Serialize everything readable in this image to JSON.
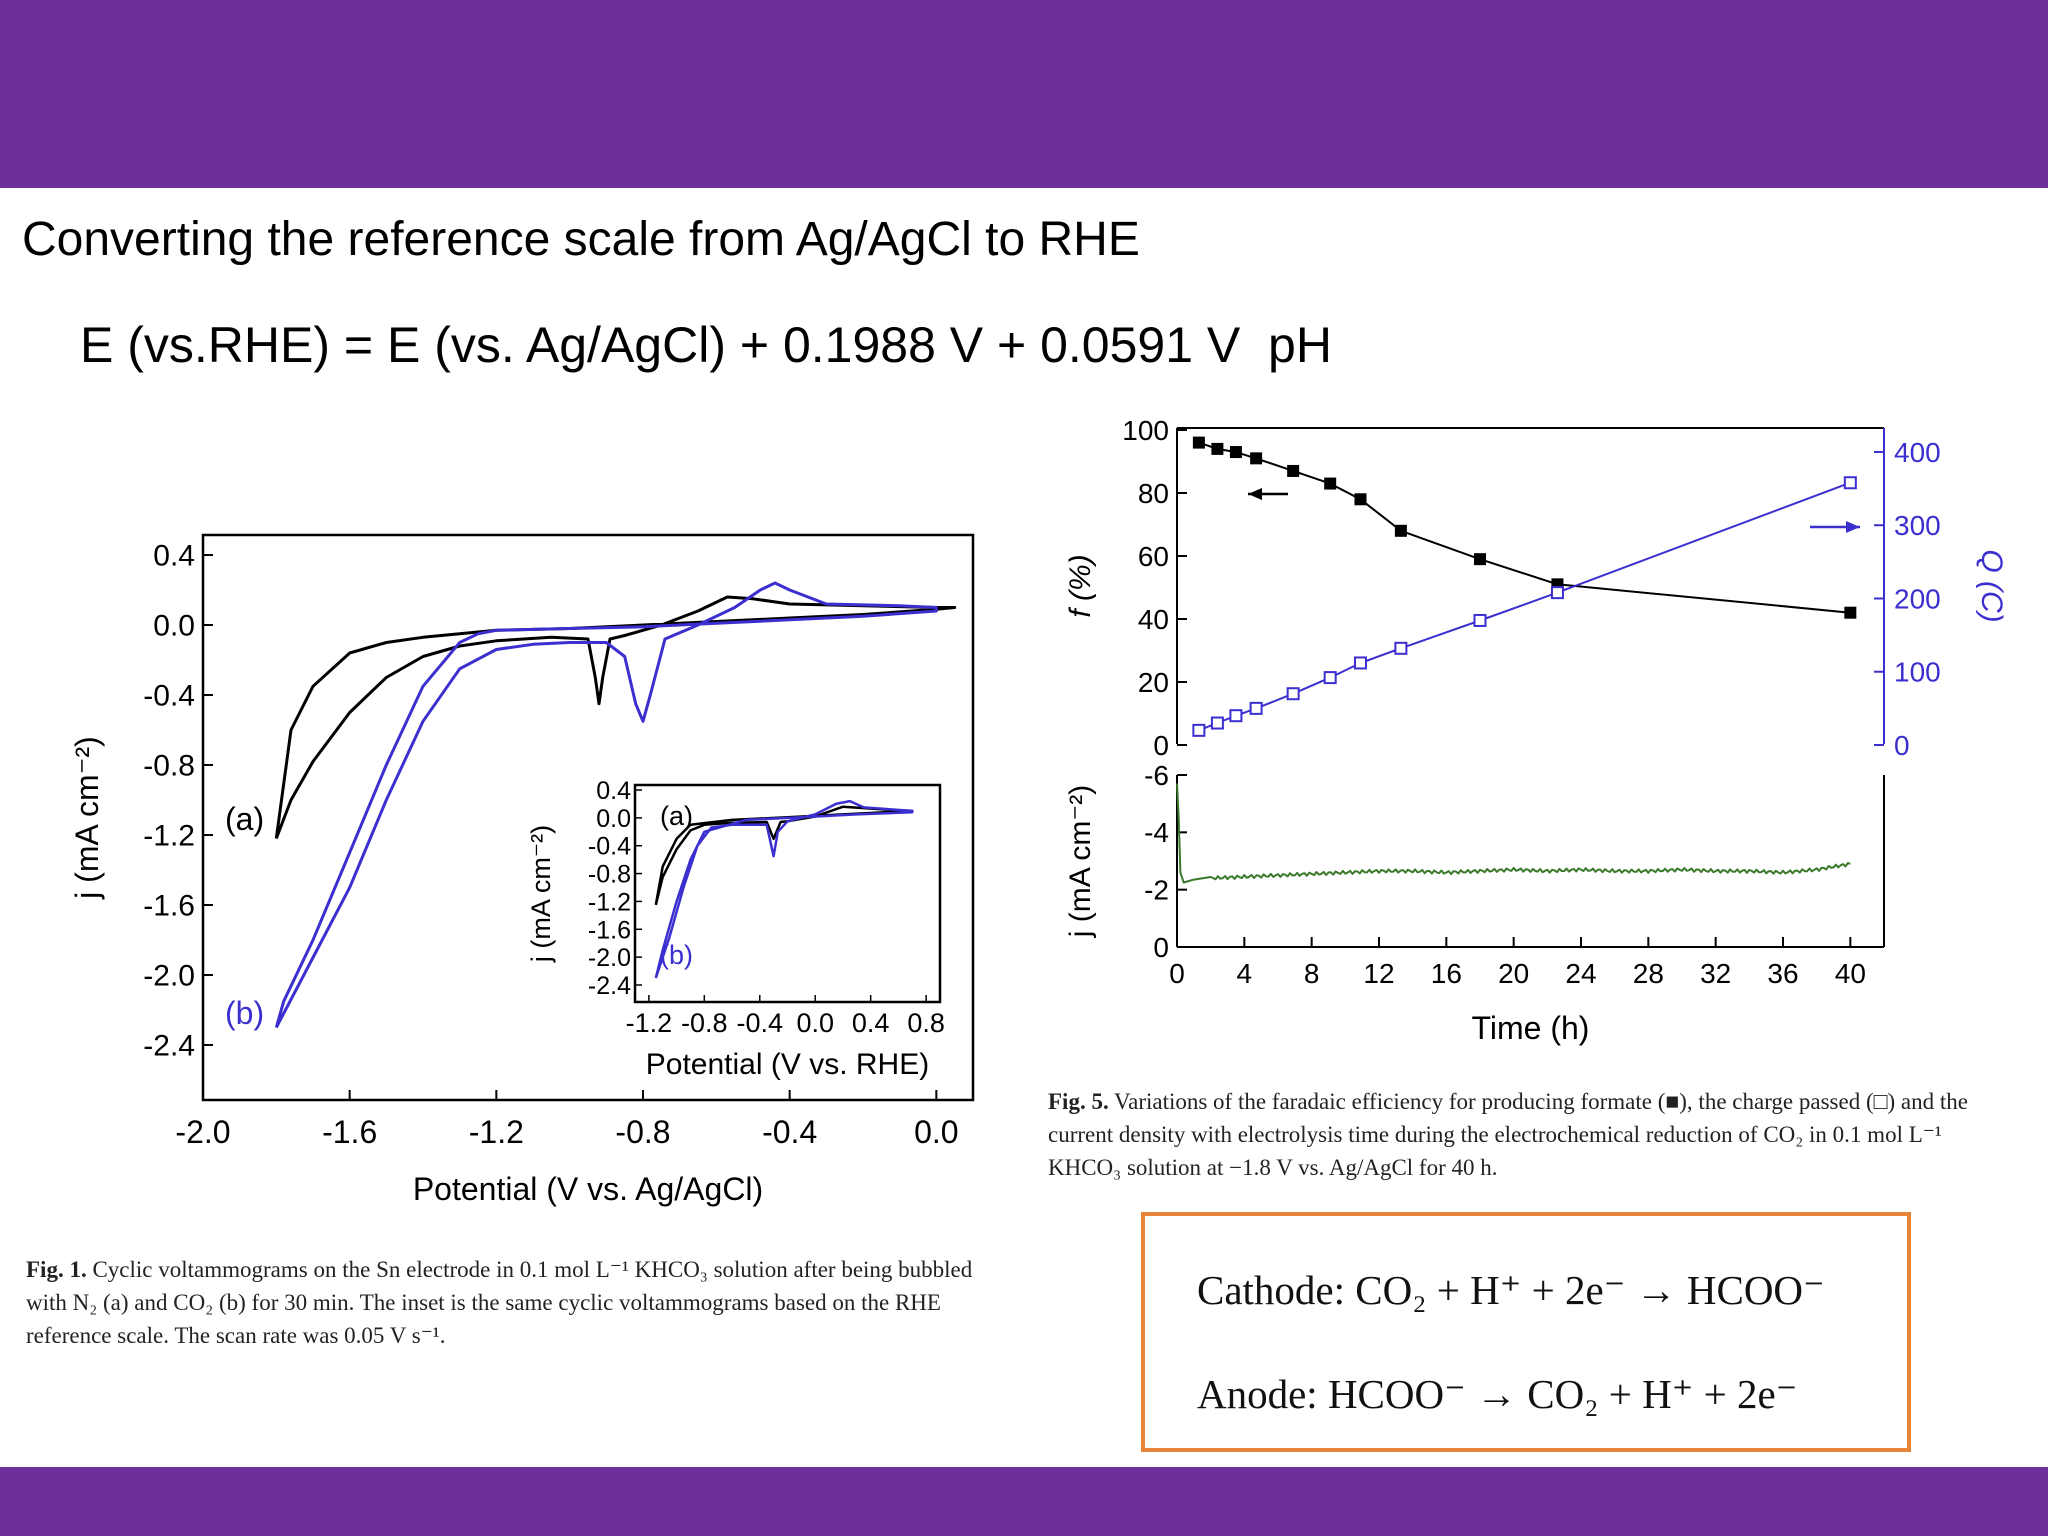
{
  "slide": {
    "title": "Converting the reference scale from Ag/AgCl to RHE",
    "equation": "E (vs.RHE) = E (vs. Ag/AgCl) + 0.1988 V + 0.0591 V  pH"
  },
  "colors": {
    "band": "#6f2f9b",
    "series_a": "#000000",
    "series_b": "#3b2fd0",
    "current": "#3a7a2a",
    "box_border": "#e8843a"
  },
  "fig1": {
    "caption": {
      "label": "Fig. 1.",
      "text": "Cyclic voltammograms on the Sn electrode in 0.1 mol L⁻¹ KHCO₃ solution after being bubbled with N₂ (a) and CO₂ (b) for 30 min. The inset is the same cyclic voltammograms based on the RHE reference scale. The scan rate was 0.05 V s⁻¹."
    }
  },
  "fig5": {
    "caption": {
      "label": "Fig. 5.",
      "text": "Variations of the faradaic efficiency for producing formate (■), the charge passed (□) and the current density with electrolysis time during the electrochemical reduction of CO₂ in 0.1 mol L⁻¹ KHCO₃ solution at −1.8 V vs. Ag/AgCl for 40 h."
    }
  },
  "reactions": {
    "cathode": "Cathode: CO₂ + H⁺ + 2e⁻  →  HCOO⁻",
    "anode": "Anode: HCOO⁻  →  CO₂ + H⁺ + 2e⁻"
  },
  "chart_data": [
    {
      "id": "cv_main",
      "type": "line",
      "xlabel": "Potential (V vs. Ag/AgCl)",
      "ylabel": "j (mA cm⁻²)",
      "xlim": [
        -2.0,
        0.1
      ],
      "ylim": [
        -2.6,
        0.45
      ],
      "xticks": [
        -2.0,
        -1.6,
        -1.2,
        -0.8,
        -0.4,
        0.0
      ],
      "xtick_labels": [
        "-2.0",
        "-1.6",
        "-1.2",
        "-0.8",
        "-0.4",
        "0.0"
      ],
      "yticks": [
        0.4,
        0.0,
        -0.4,
        -0.8,
        -1.2,
        -1.6,
        -2.0,
        -2.4
      ],
      "ytick_labels": [
        "0.4",
        "0.0",
        "-0.4",
        "-0.8",
        "-1.2",
        "-1.6",
        "-2.0",
        "-2.4"
      ],
      "annotations": [
        {
          "text": "(a)",
          "x": -1.94,
          "y": -1.17,
          "series": "a"
        },
        {
          "text": "(b)",
          "x": -1.94,
          "y": -2.28,
          "series": "b"
        }
      ],
      "series": [
        {
          "name": "(a)",
          "color": "#000000",
          "x": [
            -1.8,
            -1.76,
            -1.7,
            -1.6,
            -1.5,
            -1.4,
            -1.3,
            -1.2,
            -1.05,
            -0.95,
            -0.93,
            -0.92,
            -0.91,
            -0.89,
            -0.85,
            -0.75,
            -0.65,
            -0.57,
            -0.5,
            -0.4,
            -0.2,
            0.0,
            0.05,
            0.0,
            -0.2,
            -0.4,
            -0.6,
            -0.8,
            -1.0,
            -1.2,
            -1.3,
            -1.4,
            -1.5,
            -1.6,
            -1.7,
            -1.76,
            -1.8
          ],
          "y": [
            -1.22,
            -1.0,
            -0.78,
            -0.5,
            -0.3,
            -0.18,
            -0.12,
            -0.09,
            -0.07,
            -0.08,
            -0.3,
            -0.45,
            -0.3,
            -0.08,
            -0.06,
            0.0,
            0.08,
            0.16,
            0.15,
            0.12,
            0.11,
            0.1,
            0.1,
            0.09,
            0.06,
            0.04,
            0.02,
            0.0,
            -0.02,
            -0.03,
            -0.05,
            -0.07,
            -0.1,
            -0.16,
            -0.35,
            -0.6,
            -1.22
          ]
        },
        {
          "name": "(b)",
          "color": "#3b2fd0",
          "x": [
            -1.8,
            -1.7,
            -1.6,
            -1.5,
            -1.4,
            -1.3,
            -1.2,
            -1.1,
            -1.0,
            -0.9,
            -0.85,
            -0.82,
            -0.8,
            -0.78,
            -0.74,
            -0.65,
            -0.55,
            -0.48,
            -0.44,
            -0.4,
            -0.3,
            -0.1,
            0.0,
            0.0,
            -0.2,
            -0.4,
            -0.6,
            -0.8,
            -1.0,
            -1.2,
            -1.25,
            -1.3,
            -1.4,
            -1.5,
            -1.6,
            -1.7,
            -1.78,
            -1.8
          ],
          "y": [
            -2.3,
            -1.9,
            -1.5,
            -1.0,
            -0.55,
            -0.25,
            -0.14,
            -0.11,
            -0.1,
            -0.1,
            -0.18,
            -0.45,
            -0.55,
            -0.4,
            -0.08,
            0.0,
            0.1,
            0.2,
            0.24,
            0.2,
            0.12,
            0.11,
            0.1,
            0.08,
            0.05,
            0.03,
            0.01,
            -0.01,
            -0.02,
            -0.03,
            -0.05,
            -0.1,
            -0.35,
            -0.8,
            -1.3,
            -1.8,
            -2.15,
            -2.3
          ]
        }
      ]
    },
    {
      "id": "cv_inset",
      "type": "line",
      "xlabel": "Potential (V vs. RHE)",
      "ylabel": "j (mA cm⁻²)",
      "xlim": [
        -1.3,
        0.9
      ],
      "ylim": [
        -2.6,
        0.5
      ],
      "xticks": [
        -1.2,
        -0.8,
        -0.4,
        0.0,
        0.4,
        0.8
      ],
      "xtick_labels": [
        "-1.2",
        "-0.8",
        "-0.4",
        "0.0",
        "0.4",
        "0.8"
      ],
      "yticks": [
        0.4,
        0.0,
        -0.4,
        -0.8,
        -1.2,
        -1.6,
        -2.0,
        -2.4
      ],
      "ytick_labels": [
        "0.4",
        "0.0",
        "-0.4",
        "-0.8",
        "-1.2",
        "-1.6",
        "-2.0",
        "-2.4"
      ],
      "annotations": [
        {
          "text": "(a)",
          "x": -1.12,
          "y": -0.1,
          "series": "a"
        },
        {
          "text": "(b)",
          "x": -1.12,
          "y": -2.1,
          "series": "b"
        }
      ],
      "series": [
        {
          "name": "(a)",
          "color": "#000000",
          "x": [
            -1.15,
            -1.1,
            -1.0,
            -0.9,
            -0.8,
            -0.6,
            -0.35,
            -0.3,
            -0.25,
            -0.2,
            0.0,
            0.2,
            0.5,
            0.7,
            0.6,
            0.2,
            -0.2,
            -0.6,
            -0.9,
            -1.0,
            -1.1,
            -1.15
          ],
          "y": [
            -1.25,
            -0.85,
            -0.45,
            -0.18,
            -0.1,
            -0.07,
            -0.06,
            -0.3,
            -0.06,
            -0.05,
            0.02,
            0.16,
            0.12,
            0.1,
            0.09,
            0.05,
            0.01,
            -0.03,
            -0.1,
            -0.3,
            -0.7,
            -1.25
          ]
        },
        {
          "name": "(b)",
          "color": "#3b2fd0",
          "x": [
            -1.15,
            -1.05,
            -0.95,
            -0.85,
            -0.75,
            -0.6,
            -0.35,
            -0.3,
            -0.27,
            -0.2,
            0.0,
            0.15,
            0.25,
            0.35,
            0.7,
            0.7,
            0.3,
            -0.1,
            -0.5,
            -0.8,
            -0.9,
            -1.0,
            -1.1,
            -1.15
          ],
          "y": [
            -2.3,
            -1.7,
            -1.0,
            -0.4,
            -0.14,
            -0.1,
            -0.1,
            -0.55,
            -0.2,
            -0.05,
            0.05,
            0.2,
            0.24,
            0.15,
            0.1,
            0.08,
            0.05,
            0.01,
            -0.03,
            -0.2,
            -0.6,
            -1.2,
            -1.9,
            -2.3
          ]
        }
      ]
    },
    {
      "id": "fe_charge",
      "type": "line",
      "xlabel": "Time (h)",
      "ylabel": "f (%)",
      "y2label": "Q (C)",
      "xlim": [
        0,
        42
      ],
      "ylim": [
        0,
        100
      ],
      "y2lim": [
        0,
        430
      ],
      "yticks": [
        0,
        20,
        40,
        60,
        80,
        100
      ],
      "ytick_labels": [
        "0",
        "20",
        "40",
        "60",
        "80",
        "100"
      ],
      "y2ticks": [
        0,
        100,
        200,
        300,
        400
      ],
      "y2tick_labels": [
        "0",
        "100",
        "200",
        "300",
        "400"
      ],
      "series": [
        {
          "name": "f",
          "axis": "left",
          "marker": "filled-square",
          "color": "#000000",
          "x": [
            1.3,
            2.4,
            3.5,
            4.7,
            6.9,
            9.1,
            10.9,
            13.3,
            18.0,
            22.6,
            40.0
          ],
          "y": [
            96,
            94,
            93,
            91,
            87,
            83,
            78,
            68,
            59,
            51,
            42
          ]
        },
        {
          "name": "Q",
          "axis": "right",
          "marker": "open-square",
          "color": "#3b2fd0",
          "x": [
            1.3,
            2.4,
            3.5,
            4.7,
            6.9,
            9.1,
            10.9,
            13.3,
            18.0,
            22.6,
            40.0
          ],
          "y": [
            20,
            30,
            40,
            50,
            70,
            92,
            112,
            132,
            170,
            208,
            358
          ]
        }
      ]
    },
    {
      "id": "current_density",
      "type": "line",
      "xlabel": "Time (h)",
      "ylabel": "j (mA cm⁻²)",
      "xlim": [
        0,
        42
      ],
      "ylim": [
        0,
        -6
      ],
      "xticks": [
        0,
        4,
        8,
        12,
        16,
        20,
        24,
        28,
        32,
        36,
        40
      ],
      "xtick_labels": [
        "0",
        "4",
        "8",
        "12",
        "16",
        "20",
        "24",
        "28",
        "32",
        "36",
        "40"
      ],
      "yticks": [
        0,
        -2,
        -4,
        -6
      ],
      "ytick_labels": [
        "0",
        "-2",
        "-4",
        "-6"
      ],
      "series": [
        {
          "name": "j",
          "color": "#3a7a2a",
          "x": [
            0,
            0.1,
            0.2,
            0.4,
            1,
            2,
            4,
            6,
            8,
            10,
            12,
            14,
            16,
            18,
            20,
            22,
            24,
            26,
            28,
            30,
            32,
            34,
            36,
            38,
            40
          ],
          "y": [
            -5.7,
            -4.5,
            -2.6,
            -2.25,
            -2.35,
            -2.4,
            -2.45,
            -2.5,
            -2.55,
            -2.6,
            -2.65,
            -2.65,
            -2.6,
            -2.65,
            -2.7,
            -2.65,
            -2.7,
            -2.65,
            -2.65,
            -2.7,
            -2.65,
            -2.65,
            -2.6,
            -2.7,
            -2.9
          ]
        }
      ]
    }
  ]
}
